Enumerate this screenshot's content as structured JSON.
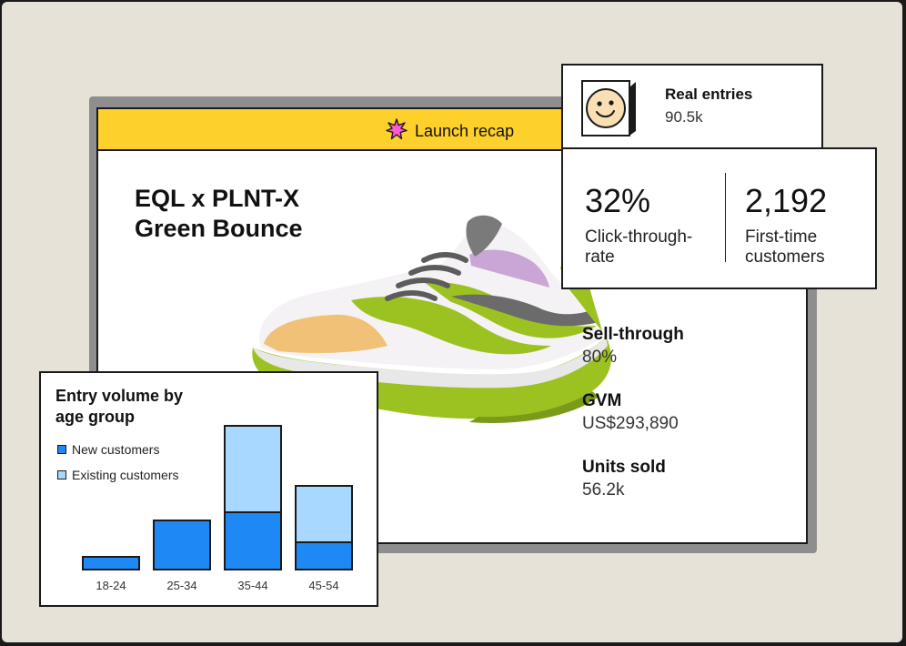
{
  "header": {
    "title": "Launch recap",
    "icon": "sparkle-icon",
    "background_color": "#fdd02b"
  },
  "product": {
    "title_line1": "EQL x PLNT-X",
    "title_line2": "Green Bounce"
  },
  "entries": {
    "title": "Real entries",
    "value": "90.5k",
    "icon": "smiley-face-icon"
  },
  "metrics": [
    {
      "value": "32%",
      "label_line1": "Click-through-",
      "label_line2": "rate"
    },
    {
      "value": "2,192",
      "label_line1": "First-time",
      "label_line2": "customers"
    }
  ],
  "stats": [
    {
      "label": "Sell-through",
      "value": "80%"
    },
    {
      "label": "GVM",
      "value": "US$293,890"
    },
    {
      "label": "Units sold",
      "value": "56.2k"
    }
  ],
  "chart": {
    "title_line1": "Entry volume by",
    "title_line2": "age group",
    "legend": [
      {
        "name": "New customers",
        "color": "#1e88f5"
      },
      {
        "name": "Existing customers",
        "color": "#a8d8ff"
      }
    ]
  },
  "chart_data": {
    "type": "bar",
    "stacked": true,
    "title": "Entry volume by age group",
    "categories": [
      "18-24",
      "25-34",
      "35-44",
      "45-54"
    ],
    "series": [
      {
        "name": "New customers",
        "values": [
          14,
          54,
          63,
          30
        ]
      },
      {
        "name": "Existing customers",
        "values": [
          0,
          0,
          95,
          62
        ]
      }
    ],
    "ylim": [
      0,
      160
    ],
    "grid": false,
    "legend_position": "top-left",
    "axes_visible": false
  }
}
